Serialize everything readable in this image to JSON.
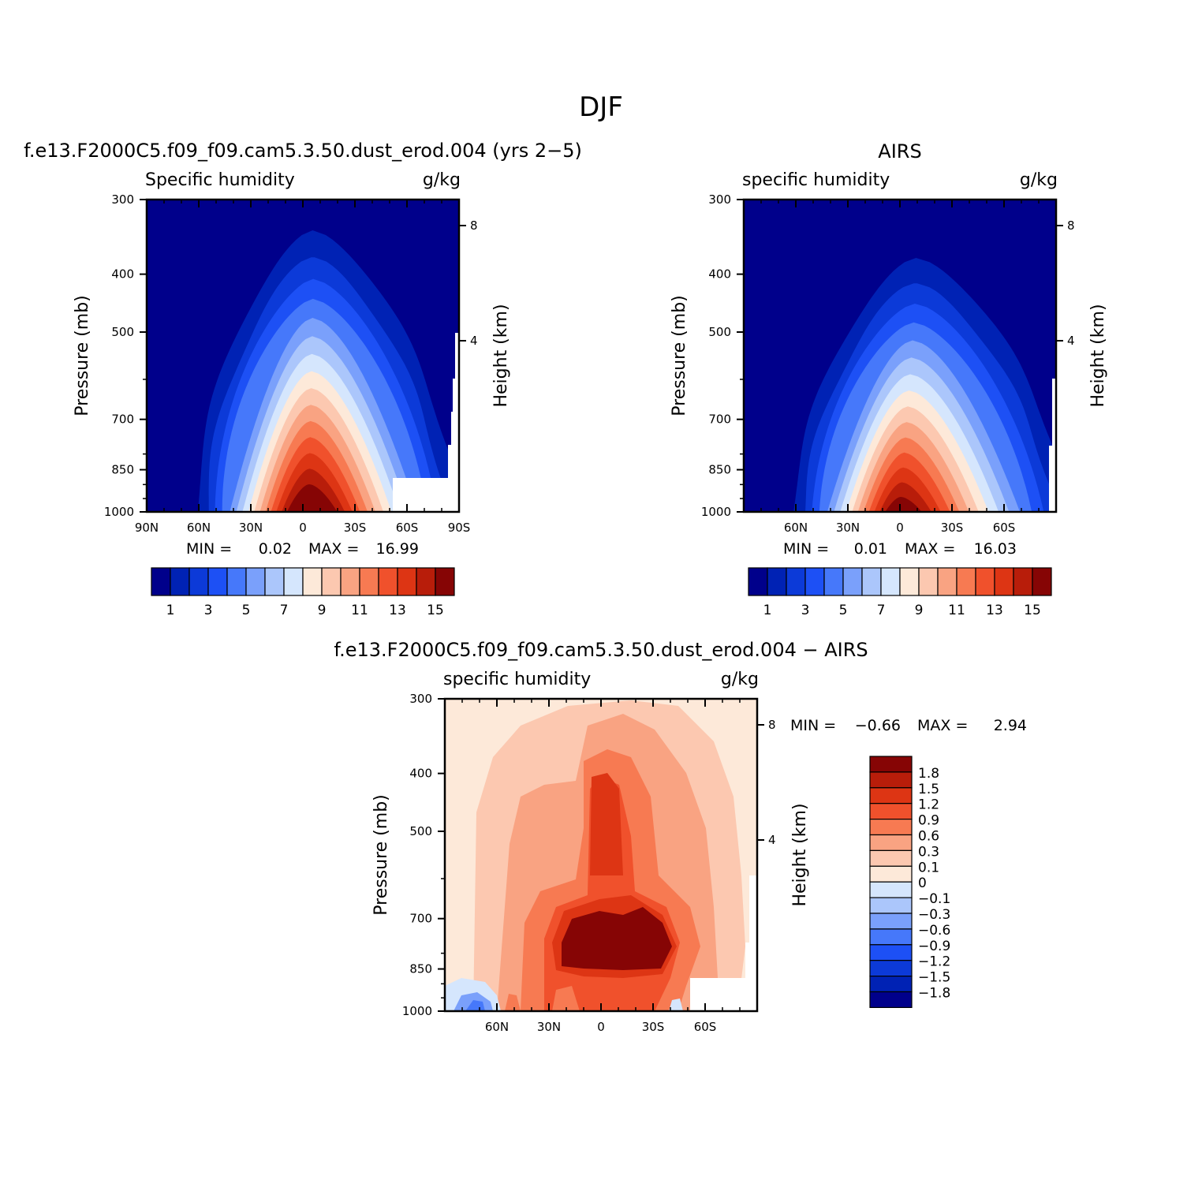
{
  "figure": {
    "title": "DJF"
  },
  "palette": {
    "blue_red": [
      "#00008b",
      "#0022b4",
      "#0c3ad8",
      "#1d50f5",
      "#4678fa",
      "#7aa0fb",
      "#abc6fb",
      "#d5e6fd",
      "#fde9d9",
      "#fcc8b0",
      "#f9a382",
      "#f77a52",
      "#f0512c",
      "#dd3514",
      "#b81d0a",
      "#860505"
    ],
    "white": "#ffffff"
  },
  "chart_data": [
    {
      "type": "contour",
      "case_title": "f.e13.F2000C5.f09_f09.cam5.3.50.dust_erod.004 (yrs 2−5)",
      "variable": "Specific humidity",
      "units": "g/kg",
      "ylabel": "Pressure (mb)",
      "ylabel_right": "Height (km)",
      "x_ticks": [
        "90N",
        "60N",
        "30N",
        "0",
        "30S",
        "60S",
        "90S"
      ],
      "y_ticks": [
        "300",
        "400",
        "500",
        "700",
        "850",
        "1000"
      ],
      "y_right_ticks": [
        "8",
        "4"
      ],
      "stats": {
        "min_label": "MIN =",
        "min": "0.02",
        "max_label": "MAX =",
        "max": "16.99"
      },
      "ylim": [
        1000,
        300
      ],
      "xlim": [
        90,
        -90
      ],
      "levels": [
        1,
        2,
        3,
        4,
        5,
        6,
        7,
        8,
        9,
        10,
        11,
        12,
        13,
        14,
        15
      ],
      "colorbar_labels": [
        "1",
        "3",
        "5",
        "7",
        "9",
        "11",
        "13",
        "15"
      ]
    },
    {
      "type": "contour",
      "case_title": "AIRS",
      "variable": "specific humidity",
      "units": "g/kg",
      "ylabel": "Pressure (mb)",
      "ylabel_right": "Height (km)",
      "x_ticks": [
        "60N",
        "30N",
        "0",
        "30S",
        "60S"
      ],
      "y_ticks": [
        "300",
        "400",
        "500",
        "700",
        "850",
        "1000"
      ],
      "y_right_ticks": [
        "8",
        "4"
      ],
      "stats": {
        "min_label": "MIN =",
        "min": "0.01",
        "max_label": "MAX =",
        "max": "16.03"
      },
      "ylim": [
        1000,
        300
      ],
      "xlim": [
        90,
        -90
      ],
      "levels": [
        1,
        2,
        3,
        4,
        5,
        6,
        7,
        8,
        9,
        10,
        11,
        12,
        13,
        14,
        15
      ],
      "colorbar_labels": [
        "1",
        "3",
        "5",
        "7",
        "9",
        "11",
        "13",
        "15"
      ]
    },
    {
      "type": "contour",
      "case_title": "f.e13.F2000C5.f09_f09.cam5.3.50.dust_erod.004 − AIRS",
      "variable": "specific humidity",
      "units": "g/kg",
      "ylabel": "Pressure (mb)",
      "ylabel_right": "Height (km)",
      "x_ticks": [
        "60N",
        "30N",
        "0",
        "30S",
        "60S"
      ],
      "y_ticks": [
        "300",
        "400",
        "500",
        "700",
        "850",
        "1000"
      ],
      "y_right_ticks": [
        "8",
        "4"
      ],
      "stats": {
        "min_label": "MIN =",
        "min": "−0.66",
        "max_label": "MAX =",
        "max": "2.94"
      },
      "ylim": [
        1000,
        300
      ],
      "xlim": [
        90,
        -90
      ],
      "levels": [
        -1.8,
        -1.5,
        -1.2,
        -0.9,
        -0.6,
        -0.3,
        -0.1,
        0,
        0.1,
        0.3,
        0.6,
        0.9,
        1.2,
        1.5,
        1.8
      ],
      "colorbar_labels": [
        "1.8",
        "1.5",
        "1.2",
        "0.9",
        "0.6",
        "0.3",
        "0.1",
        "0",
        "−0.1",
        "−0.3",
        "−0.6",
        "−0.9",
        "−1.2",
        "−1.5",
        "−1.8"
      ]
    }
  ]
}
